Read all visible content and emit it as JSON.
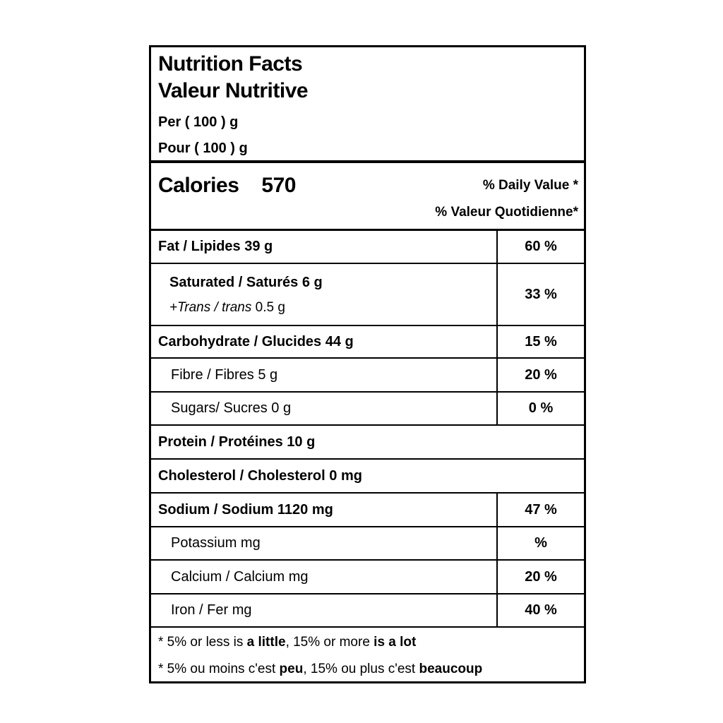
{
  "label": {
    "header": {
      "title_en": "Nutrition Facts",
      "title_fr": "Valeur Nutritive",
      "serving_en": "Per ( 100 ) g",
      "serving_fr": "Pour ( 100 ) g"
    },
    "calories": {
      "label": "Calories",
      "value": "570",
      "daily_value_en": "% Daily Value *",
      "daily_value_fr": "% Valeur Quotidienne*"
    },
    "rows": [
      {
        "label": "Fat / Lipides 39 g",
        "value": "60 %"
      },
      {
        "label": "Saturated / Saturés 6 g",
        "label_line2_italic": "+Trans / trans",
        "label_line2_rest": " 0.5 g",
        "value": "33 %"
      },
      {
        "label": "Carbohydrate / Glucides 44 g",
        "value": "15 %"
      },
      {
        "label": "Fibre / Fibres 5 g",
        "value": "20 %"
      },
      {
        "label": "Sugars/ Sucres 0 g",
        "value": "0 %"
      },
      {
        "label": "Protein / Protéines 10 g"
      },
      {
        "label": "Cholesterol / Cholesterol 0 mg"
      },
      {
        "label": "Sodium / Sodium 1120 mg",
        "value": "47 %"
      },
      {
        "label": "Potassium mg",
        "value": "%"
      },
      {
        "label": "Calcium / Calcium mg",
        "value": "20 %"
      },
      {
        "label": "Iron / Fer mg",
        "value": "40 %"
      }
    ],
    "footnote": {
      "en_parts": [
        "* 5% or less is ",
        "a little",
        ", 15% or more ",
        "is a lot"
      ],
      "fr_parts": [
        "* 5% ou moins c'est ",
        "peu",
        ", 15% ou plus c'est ",
        "beaucoup"
      ]
    },
    "colors": {
      "border": "#000000",
      "background": "#ffffff",
      "text": "#000000"
    }
  }
}
